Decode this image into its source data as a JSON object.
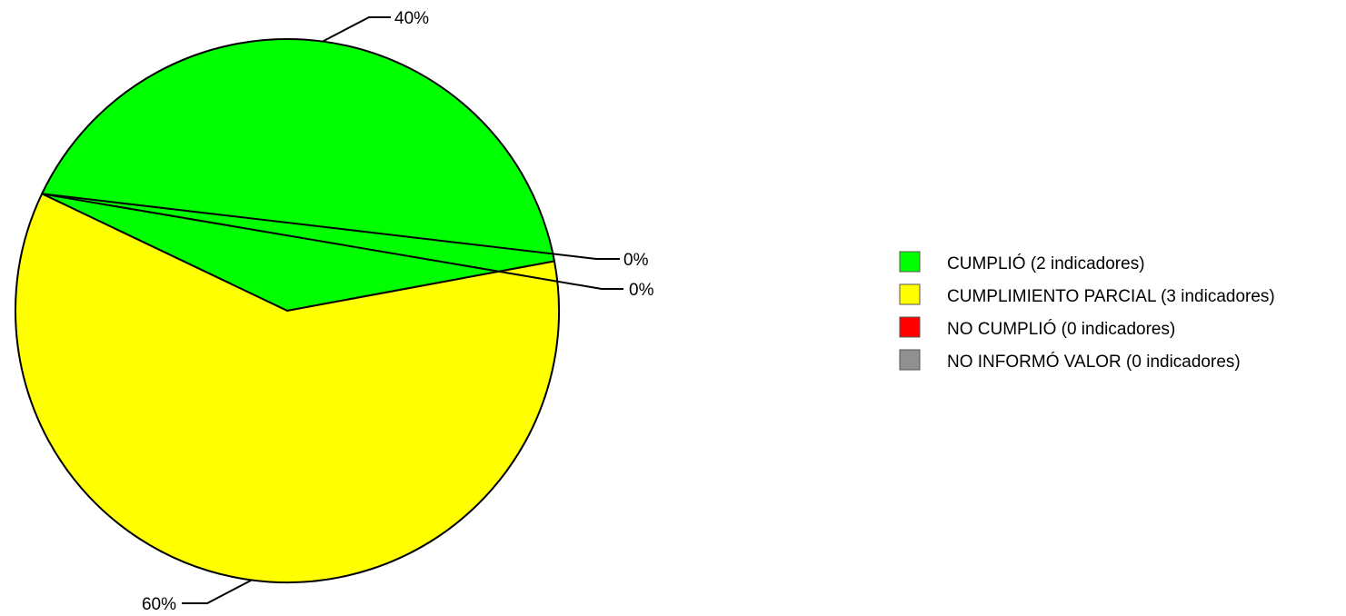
{
  "chart_data": {
    "type": "pie",
    "legend_position": "right",
    "slices": [
      {
        "legend": "CUMPLIÓ (2 indicadores)",
        "value": 40,
        "label": "40%",
        "color": "#00ff00"
      },
      {
        "legend": "CUMPLIMIENTO PARCIAL (3 indicadores)",
        "value": 60,
        "label": "60%",
        "color": "#ffff00"
      },
      {
        "legend": "NO CUMPLIÓ (0 indicadores)",
        "value": 0,
        "label": "0%",
        "color": "#ff0000"
      },
      {
        "legend": "NO INFORMÓ VALOR (0 indicadores)",
        "value": 0,
        "label": "0%",
        "color": "#909090"
      }
    ]
  }
}
